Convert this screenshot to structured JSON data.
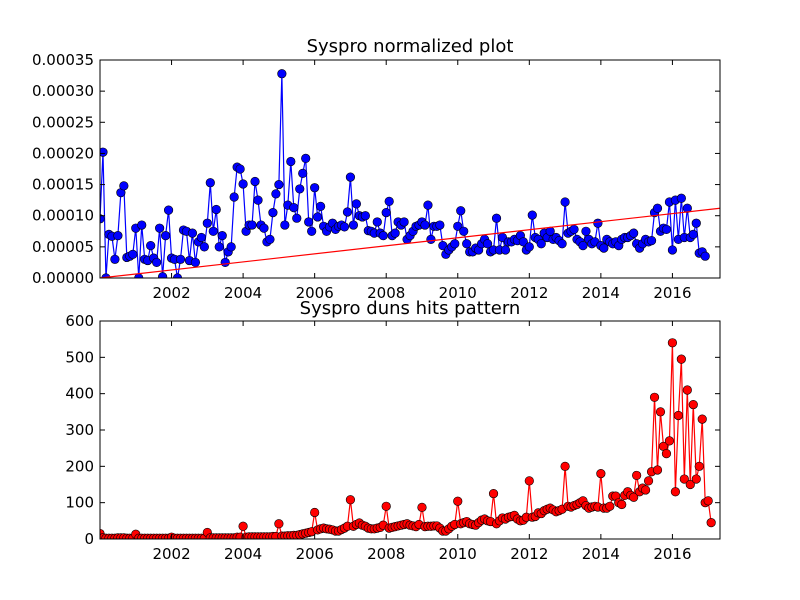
{
  "chart_data": [
    {
      "type": "line",
      "title": "Syspro normalized plot",
      "xlabel": "",
      "ylabel": "",
      "xlim": [
        2000.0,
        2017.33
      ],
      "ylim": [
        0,
        0.00035
      ],
      "x_ticks": [
        2002,
        2004,
        2006,
        2008,
        2010,
        2012,
        2014,
        2016
      ],
      "y_ticks": [
        0.0,
        5e-05,
        0.0001,
        0.00015,
        0.0002,
        0.00025,
        0.0003,
        0.00035
      ],
      "x_tick_labels": [
        "2002",
        "2004",
        "2006",
        "2008",
        "2010",
        "2012",
        "2014",
        "2016"
      ],
      "y_tick_labels": [
        "0.00000",
        "0.00005",
        "0.00010",
        "0.00015",
        "0.00020",
        "0.00025",
        "0.00030",
        "0.00035"
      ],
      "grid": false,
      "series": [
        {
          "marker": "circle",
          "color": "#0000ff",
          "x_start": 2000.0,
          "x_step": 0.083333,
          "values": [
            9.5e-05,
            0.000202,
            0.0,
            7e-05,
            6.7e-05,
            3e-05,
            6.8e-05,
            0.000137,
            0.000148,
            3.3e-05,
            3.5e-05,
            3.8e-05,
            8e-05,
            0.0,
            8.5e-05,
            3e-05,
            2.8e-05,
            5.2e-05,
            3.2e-05,
            2.5e-05,
            8e-05,
            2e-06,
            6.8e-05,
            0.000109,
            3.2e-05,
            3e-05,
            0.0,
            3e-05,
            7.7e-05,
            7.5e-05,
            2.8e-05,
            7.2e-05,
            2.5e-05,
            5.8e-05,
            6.5e-05,
            5e-05,
            8.8e-05,
            0.000153,
            7.5e-05,
            0.00011,
            5e-05,
            6.8e-05,
            2.5e-05,
            4.2e-05,
            5e-05,
            0.00013,
            0.000178,
            0.000175,
            0.000151,
            7.5e-05,
            8.5e-05,
            8.5e-05,
            0.000155,
            0.000125,
            8.5e-05,
            8e-05,
            5.8e-05,
            6.2e-05,
            0.000105,
            0.000135,
            0.00015,
            0.000328,
            8.5e-05,
            0.000117,
            0.000187,
            0.000113,
            9.6e-05,
            0.000143,
            0.000168,
            0.000192,
            9e-05,
            7.5e-05,
            0.000145,
            9.8e-05,
            0.000115,
            8.3e-05,
            7.5e-05,
            8.2e-05,
            8.8e-05,
            7.8e-05,
            8.3e-05,
            8.5e-05,
            8.2e-05,
            0.000106,
            0.000162,
            8.5e-05,
            0.000119,
            0.0001,
            9.8e-05,
            0.0001,
            7.6e-05,
            7.5e-05,
            7.2e-05,
            9e-05,
            7.2e-05,
            6.8e-05,
            0.000105,
            0.000123,
            6.8e-05,
            7.2e-05,
            9e-05,
            8.5e-05,
            9e-05,
            6.2e-05,
            6.8e-05,
            7.5e-05,
            8.3e-05,
            8.5e-05,
            9e-05,
            8.5e-05,
            0.000117,
            6.2e-05,
            8.3e-05,
            8.3e-05,
            8.5e-05,
            5.2e-05,
            3.8e-05,
            4.5e-05,
            5e-05,
            5.5e-05,
            8.3e-05,
            0.000108,
            7.5e-05,
            5.5e-05,
            4.2e-05,
            4.2e-05,
            4.8e-05,
            4.5e-05,
            5.5e-05,
            6.2e-05,
            5.5e-05,
            4.2e-05,
            4.5e-05,
            9.6e-05,
            4.5e-05,
            6.5e-05,
            4.5e-05,
            5.8e-05,
            5.8e-05,
            6.2e-05,
            6e-05,
            6.8e-05,
            5.8e-05,
            4.5e-05,
            5e-05,
            0.000101,
            6.5e-05,
            6.2e-05,
            5.5e-05,
            7.2e-05,
            6.5e-05,
            7.5e-05,
            6.2e-05,
            6.5e-05,
            6e-05,
            5.5e-05,
            0.000122,
            7.2e-05,
            7.5e-05,
            7.8e-05,
            6.2e-05,
            5.8e-05,
            5.2e-05,
            7.5e-05,
            6.2e-05,
            5.5e-05,
            5.8e-05,
            8.8e-05,
            5.2e-05,
            4.8e-05,
            6.2e-05,
            5.8e-05,
            5.5e-05,
            5.8e-05,
            5.2e-05,
            6.2e-05,
            6.5e-05,
            6.5e-05,
            6.8e-05,
            7.2e-05,
            5.5e-05,
            4.8e-05,
            5.5e-05,
            6.2e-05,
            5.8e-05,
            6e-05,
            0.000105,
            0.000112,
            7.5e-05,
            8e-05,
            7.8e-05,
            0.000122,
            4.5e-05,
            0.000125,
            6.2e-05,
            0.000128,
            6.5e-05,
            0.000112,
            6.5e-05,
            7e-05,
            8.8e-05,
            4e-05,
            4.2e-05,
            3.5e-05
          ]
        },
        {
          "marker": "none",
          "color": "#ff0000",
          "x": [
            2000.0,
            2017.33
          ],
          "values": [
            0.0,
            0.000112
          ]
        }
      ]
    },
    {
      "type": "line",
      "title": "Syspro duns hits pattern",
      "xlabel": "",
      "ylabel": "",
      "xlim": [
        2000.0,
        2017.33
      ],
      "ylim": [
        0,
        600
      ],
      "x_ticks": [
        2002,
        2004,
        2006,
        2008,
        2010,
        2012,
        2014,
        2016
      ],
      "y_ticks": [
        0,
        100,
        200,
        300,
        400,
        500,
        600
      ],
      "x_tick_labels": [
        "2002",
        "2004",
        "2006",
        "2008",
        "2010",
        "2012",
        "2014",
        "2016"
      ],
      "y_tick_labels": [
        "0",
        "100",
        "200",
        "300",
        "400",
        "500",
        "600"
      ],
      "grid": false,
      "series": [
        {
          "marker": "circle",
          "color": "#ff0000",
          "x_start": 2000.0,
          "x_step": 0.083333,
          "values": [
            15,
            3,
            2,
            2,
            2,
            2,
            3,
            3,
            3,
            2,
            2,
            2,
            13,
            2,
            2,
            2,
            2,
            2,
            2,
            2,
            2,
            2,
            2,
            2,
            5,
            2,
            2,
            2,
            2,
            2,
            2,
            2,
            2,
            2,
            2,
            2,
            18,
            3,
            3,
            3,
            3,
            3,
            3,
            3,
            3,
            3,
            5,
            5,
            35,
            5,
            6,
            6,
            6,
            6,
            6,
            6,
            6,
            6,
            7,
            7,
            42,
            8,
            8,
            9,
            9,
            10,
            10,
            12,
            14,
            16,
            18,
            20,
            73,
            25,
            28,
            30,
            28,
            27,
            25,
            22,
            22,
            26,
            30,
            35,
            108,
            35,
            40,
            44,
            38,
            35,
            30,
            28,
            28,
            30,
            32,
            38,
            90,
            30,
            32,
            34,
            36,
            38,
            40,
            42,
            38,
            36,
            34,
            40,
            87,
            34,
            35,
            35,
            36,
            36,
            30,
            22,
            22,
            28,
            35,
            40,
            104,
            42,
            45,
            48,
            42,
            40,
            38,
            45,
            52,
            55,
            50,
            48,
            125,
            42,
            50,
            58,
            55,
            60,
            62,
            65,
            55,
            50,
            52,
            60,
            160,
            60,
            62,
            72,
            70,
            78,
            82,
            85,
            80,
            75,
            78,
            82,
            200,
            90,
            88,
            92,
            95,
            100,
            105,
            92,
            85,
            88,
            90,
            88,
            180,
            85,
            85,
            90,
            118,
            118,
            100,
            95,
            120,
            130,
            120,
            115,
            175,
            130,
            140,
            135,
            160,
            185,
            390,
            190,
            350,
            255,
            235,
            270,
            540,
            130,
            340,
            495,
            165,
            410,
            150,
            370,
            165,
            200,
            330,
            100,
            105,
            45
          ]
        }
      ]
    }
  ]
}
